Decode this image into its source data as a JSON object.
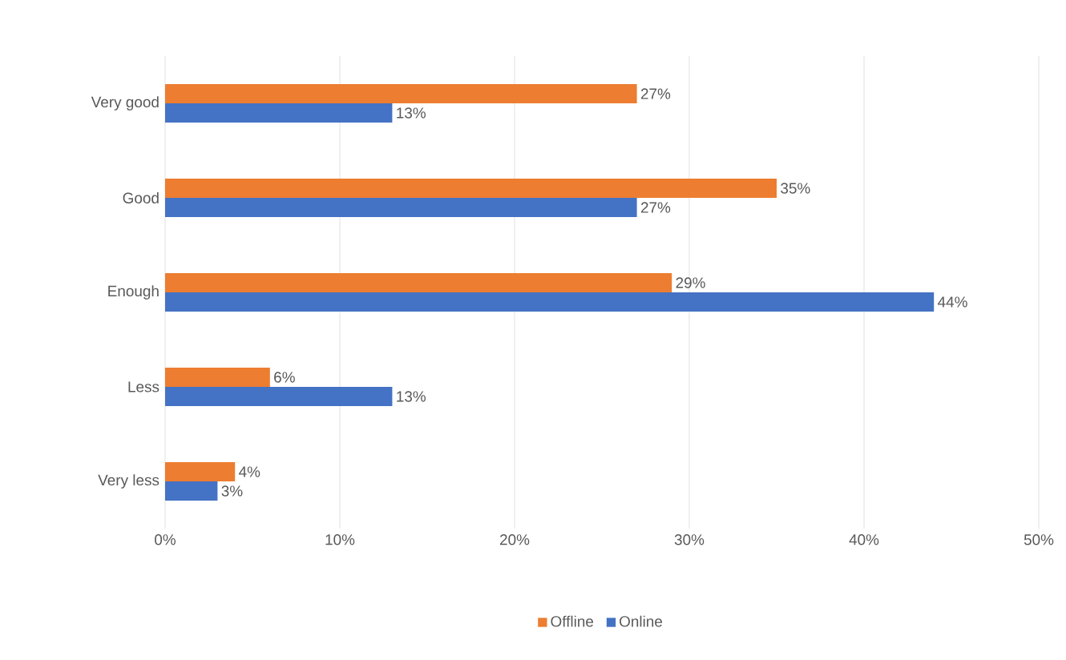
{
  "chart_data": {
    "type": "bar",
    "orientation": "horizontal",
    "categories": [
      "Very good",
      "Good",
      "Enough",
      "Less",
      "Very less"
    ],
    "series": [
      {
        "name": "Offline",
        "color": "#ed7d31",
        "values": [
          27,
          35,
          29,
          6,
          4
        ],
        "value_labels": [
          "27%",
          "35%",
          "29%",
          "6%",
          "4%"
        ]
      },
      {
        "name": "Online",
        "color": "#4472c4",
        "values": [
          13,
          27,
          44,
          13,
          3
        ],
        "value_labels": [
          "13%",
          "27%",
          "44%",
          "13%",
          "3%"
        ]
      }
    ],
    "xlim": [
      0,
      50
    ],
    "xticks": [
      {
        "value": 0,
        "label": "0%"
      },
      {
        "value": 10,
        "label": "10%"
      },
      {
        "value": 20,
        "label": "20%"
      },
      {
        "value": 30,
        "label": "30%"
      },
      {
        "value": 40,
        "label": "40%"
      },
      {
        "value": 50,
        "label": "50%"
      }
    ],
    "grid": "x",
    "legend": "bottom"
  }
}
